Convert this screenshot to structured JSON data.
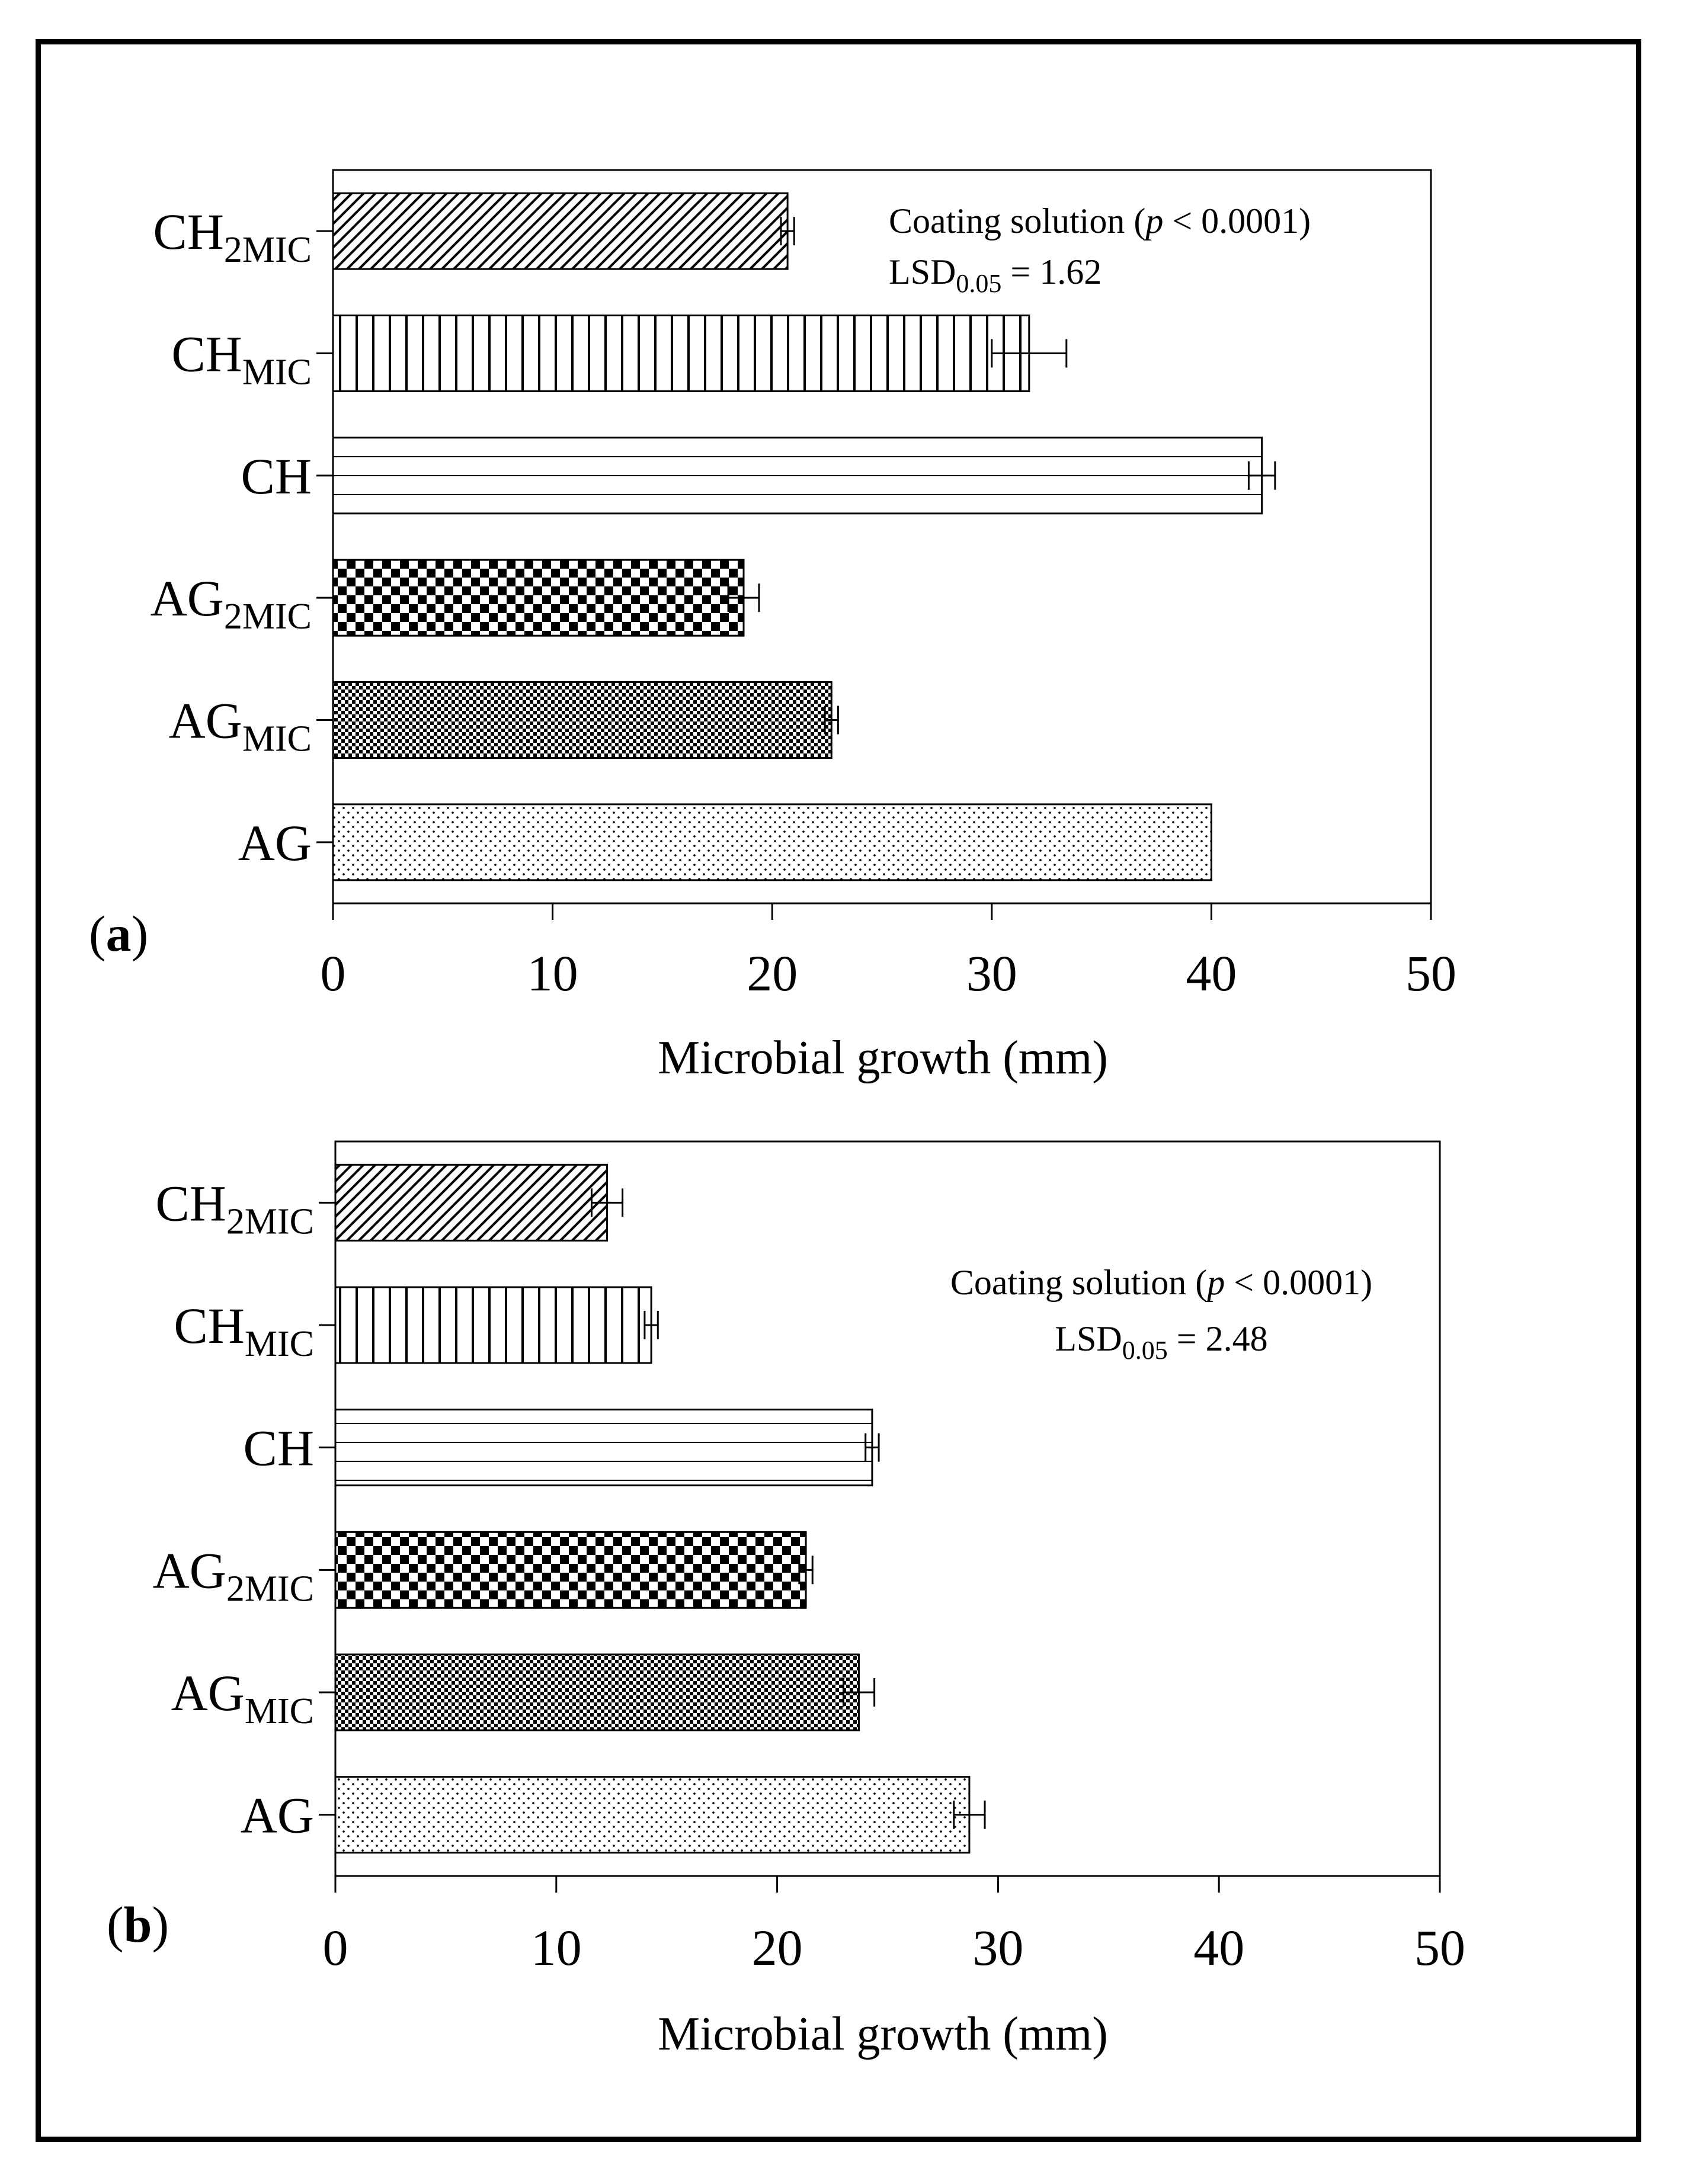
{
  "chart_data": [
    {
      "type": "bar",
      "orientation": "horizontal",
      "panel_label": "a",
      "categories": [
        {
          "base": "CH",
          "sub": "2MIC"
        },
        {
          "base": "CH",
          "sub": "MIC"
        },
        {
          "base": "CH",
          "sub": ""
        },
        {
          "base": "AG",
          "sub": "2MIC"
        },
        {
          "base": "AG",
          "sub": "MIC"
        },
        {
          "base": "AG",
          "sub": ""
        }
      ],
      "values": [
        20.7,
        31.7,
        42.3,
        18.7,
        22.7,
        40.0
      ],
      "errors": [
        0.3,
        1.7,
        0.6,
        0.7,
        0.3,
        0.0
      ],
      "patterns": [
        "diagonal",
        "vertical",
        "horizontal",
        "checker-large",
        "checker-small",
        "dots"
      ],
      "xlabel": "Microbial growth (mm)",
      "xlim": [
        0,
        50
      ],
      "xticks": [
        "0",
        "10",
        "20",
        "30",
        "40",
        "50"
      ],
      "annotation": {
        "line1_pre": "Coating solution (",
        "line1_italic": "p",
        "line1_post": " < 0.0001)",
        "line2_pre": "LSD",
        "line2_sub": "0.05",
        "line2_post": " = 1.62"
      }
    },
    {
      "type": "bar",
      "orientation": "horizontal",
      "panel_label": "b",
      "categories": [
        {
          "base": "CH",
          "sub": "2MIC"
        },
        {
          "base": "CH",
          "sub": "MIC"
        },
        {
          "base": "CH",
          "sub": ""
        },
        {
          "base": "AG",
          "sub": "2MIC"
        },
        {
          "base": "AG",
          "sub": "MIC"
        },
        {
          "base": "AG",
          "sub": ""
        }
      ],
      "values": [
        12.3,
        14.3,
        24.3,
        21.3,
        23.7,
        28.7
      ],
      "errors": [
        0.7,
        0.3,
        0.3,
        0.3,
        0.7,
        0.7
      ],
      "patterns": [
        "diagonal",
        "vertical",
        "horizontal",
        "checker-large",
        "checker-small",
        "dots"
      ],
      "xlabel": "Microbial growth (mm)",
      "xlim": [
        0,
        50
      ],
      "xticks": [
        "0",
        "10",
        "20",
        "30",
        "40",
        "50"
      ],
      "annotation": {
        "line1_pre": "Coating solution (",
        "line1_italic": "p",
        "line1_post": " < 0.0001)",
        "line2_pre": "LSD",
        "line2_sub": "0.05",
        "line2_post": " = 2.48"
      }
    }
  ]
}
